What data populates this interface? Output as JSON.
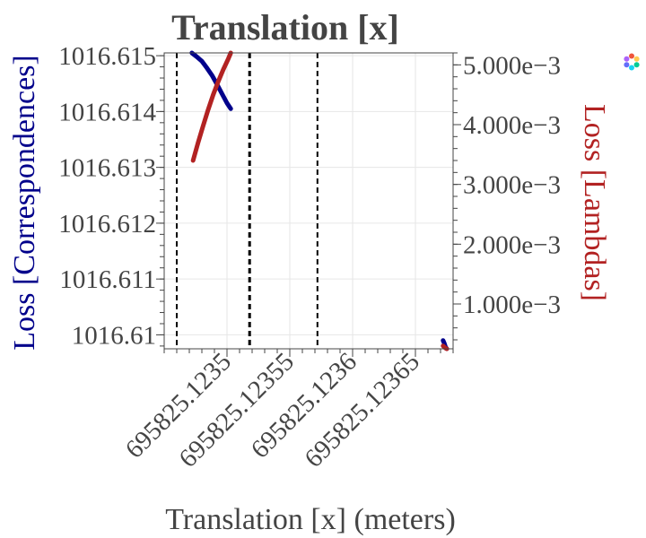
{
  "chart_data": {
    "type": "line",
    "title": "Translation [x]",
    "xlabel": "Translation [x] (meters)",
    "ylabel": "Loss [Correspondences]",
    "y2label": "Loss [Lambdas]",
    "xlim": [
      695825.12345,
      695825.12368
    ],
    "ylim": [
      1016.60975,
      1016.61505
    ],
    "y2lim": [
      0.00025,
      0.0052
    ],
    "x_ticks": [
      695825.1235,
      695825.12355,
      695825.1236,
      695825.12365
    ],
    "x_tick_labels": [
      "695825.1235",
      "695825.12355",
      "695825.1236",
      "695825.12365"
    ],
    "y_ticks": [
      1016.61,
      1016.611,
      1016.612,
      1016.613,
      1016.614,
      1016.615
    ],
    "y_tick_labels": [
      "1016.61",
      "1016.611",
      "1016.612",
      "1016.613",
      "1016.614",
      "1016.615"
    ],
    "y2_ticks": [
      0.001,
      0.002,
      0.003,
      0.004,
      0.005
    ],
    "y2_tick_labels": [
      "1.000e−3",
      "2.000e−3",
      "3.000e−3",
      "4.000e−3",
      "5.000e−3"
    ],
    "vlines": [
      695825.12346,
      695825.123518,
      695825.123572
    ],
    "grid": true,
    "legend": "none",
    "colors": {
      "correspondences": "#00008b",
      "lambdas": "#b22222",
      "text": "#444444",
      "grid": "#e6e6e6"
    },
    "series": [
      {
        "axis": "y",
        "color": "#00008b",
        "x": [
          695825.123472,
          695825.123476,
          695825.12348,
          695825.123484,
          695825.123488,
          695825.123492,
          695825.123496,
          695825.1235,
          695825.123503
        ],
        "y": [
          1016.61505,
          1016.61498,
          1016.6149,
          1016.61478,
          1016.61465,
          1016.61449,
          1016.61432,
          1016.61415,
          1016.61405
        ]
      },
      {
        "axis": "y2",
        "color": "#b22222",
        "x": [
          695825.123473,
          695825.123477,
          695825.123481,
          695825.123485,
          695825.123489,
          695825.123493,
          695825.123497,
          695825.123501,
          695825.123503
        ],
        "y": [
          0.0034,
          0.0037,
          0.00398,
          0.00425,
          0.0045,
          0.00472,
          0.00492,
          0.0051,
          0.0052
        ]
      },
      {
        "axis": "y",
        "color": "#00008b",
        "x": [
          695825.123672,
          695825.123673,
          695825.123674,
          695825.123675
        ],
        "y": [
          1016.6099,
          1016.60985,
          1016.60978,
          1016.60975
        ]
      },
      {
        "axis": "y2",
        "color": "#b22222",
        "x": [
          695825.123672,
          695825.123673,
          695825.123674,
          695825.123675
        ],
        "y": [
          0.0003,
          0.00028,
          0.00026,
          0.00025
        ]
      }
    ]
  }
}
